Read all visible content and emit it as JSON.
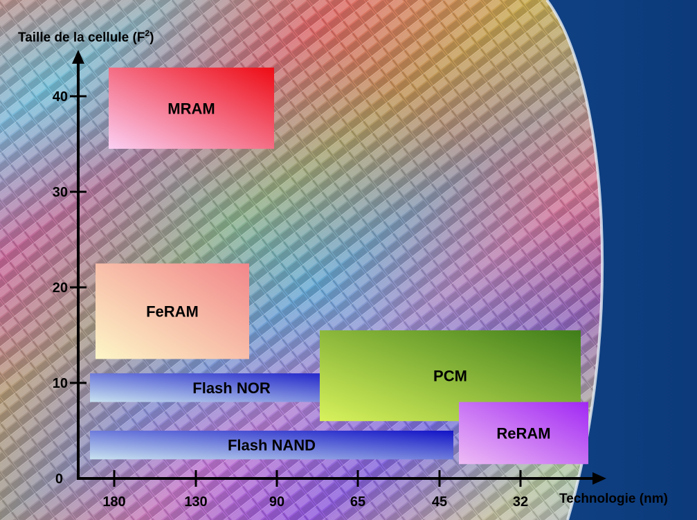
{
  "chart_data": {
    "type": "range-bar",
    "ylabel_main": "Taille de la cellule (F",
    "ylabel_sup": "2",
    "ylabel_end": ")",
    "xlabel": "Technologie (nm)",
    "x_ticks": [
      "180",
      "130",
      "90",
      "65",
      "45",
      "32"
    ],
    "y_ticks": [
      0,
      10,
      20,
      30,
      40
    ],
    "ylim": [
      0,
      45
    ],
    "bars": [
      {
        "name": "MRAM",
        "x_from": "180",
        "x_to": "90",
        "y_from": 34.5,
        "y_to": 43,
        "color_a": "#fbd0f4",
        "color_b": "#ee0b14"
      },
      {
        "name": "FeRAM",
        "x_from": "180",
        "x_to": "90",
        "y_from": 12.5,
        "y_to": 22.5,
        "color_a": "#fdf7c8",
        "color_b": "#f2868a"
      },
      {
        "name": "Flash NOR",
        "x_from": "180",
        "x_to": "65",
        "y_from": 8,
        "y_to": 11,
        "color_a": "#c9e3f0",
        "color_b": "#1213c6"
      },
      {
        "name": "Flash NAND",
        "x_from": "180",
        "x_to": "45",
        "y_from": 2,
        "y_to": 5,
        "color_a": "#c9e3f0",
        "color_b": "#1213c6"
      },
      {
        "name": "PCM",
        "x_from": "65",
        "x_to": "32",
        "y_from": 6,
        "y_to": 15.5,
        "color_a": "#d8f25c",
        "color_b": "#3f7d1a"
      },
      {
        "name": "ReRAM",
        "x_from": "45",
        "x_to": "32",
        "y_from": 1.5,
        "y_to": 8,
        "color_a": "#eebcf5",
        "color_b": "#a128f4"
      }
    ]
  }
}
